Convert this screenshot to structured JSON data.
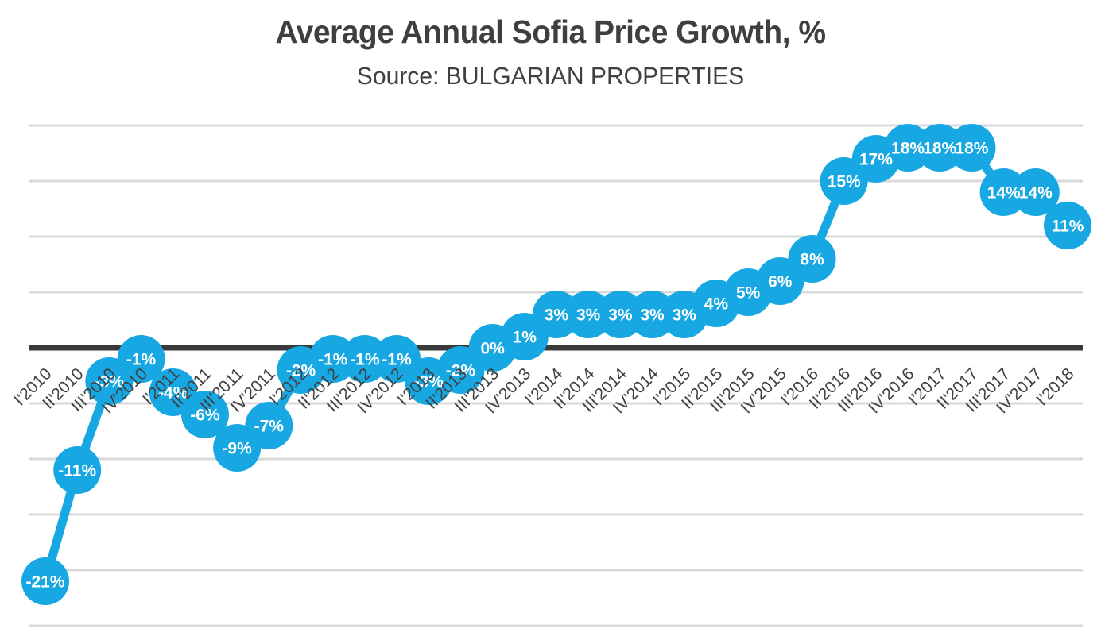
{
  "title": "Average Annual Sofia Price Growth, %",
  "subtitle": "Source: BULGARIAN PROPERTIES",
  "colors": {
    "accent_blue": "#17a8e4",
    "gridline_gray": "#d9d9d9",
    "zero_line_dark": "#3a3a3a",
    "axis_text_dark": "#404040",
    "title_text_dark": "#3f3f3f",
    "marker_label_white": "#ffffff",
    "background": "#ffffff"
  },
  "chart_data": {
    "type": "line",
    "title": "Average Annual Sofia Price Growth, %",
    "subtitle": "Source: BULGARIAN PROPERTIES",
    "categories": [
      "I'2010",
      "II'2010",
      "III'2010",
      "IV'2010",
      "I'2011",
      "II'2011",
      "III'2011",
      "IV'2011",
      "I'2012",
      "II'2012",
      "III'2012",
      "IV'2012",
      "I'2013",
      "II'2013",
      "III'2013",
      "IV'2013",
      "I'2014",
      "II'2014",
      "III'2014",
      "IV'2014",
      "I'2015",
      "II'2015",
      "III'2015",
      "IV'2015",
      "I'2016",
      "II'2016",
      "III'2016",
      "IV'2016",
      "I'2017",
      "II'2017",
      "III'2017",
      "IV'2017",
      "I'2018"
    ],
    "values": [
      -21,
      -11,
      -3,
      -1,
      -4,
      -6,
      -9,
      -7,
      -2,
      -1,
      -1,
      -1,
      -3,
      -2,
      0,
      1,
      3,
      3,
      3,
      3,
      3,
      4,
      5,
      6,
      8,
      15,
      17,
      18,
      18,
      18,
      14,
      14,
      11
    ],
    "value_label_suffix": "%",
    "xlabel": "",
    "ylabel": "",
    "ylim": [
      -25,
      20
    ],
    "gridline_step": 5,
    "grid": true,
    "y_axis_tick_labels": "none",
    "zero_line_emphasized": true,
    "legend_position": "none",
    "x_tick_rotation": -45,
    "marker_style": "large-filled-circle-with-inner-label"
  }
}
